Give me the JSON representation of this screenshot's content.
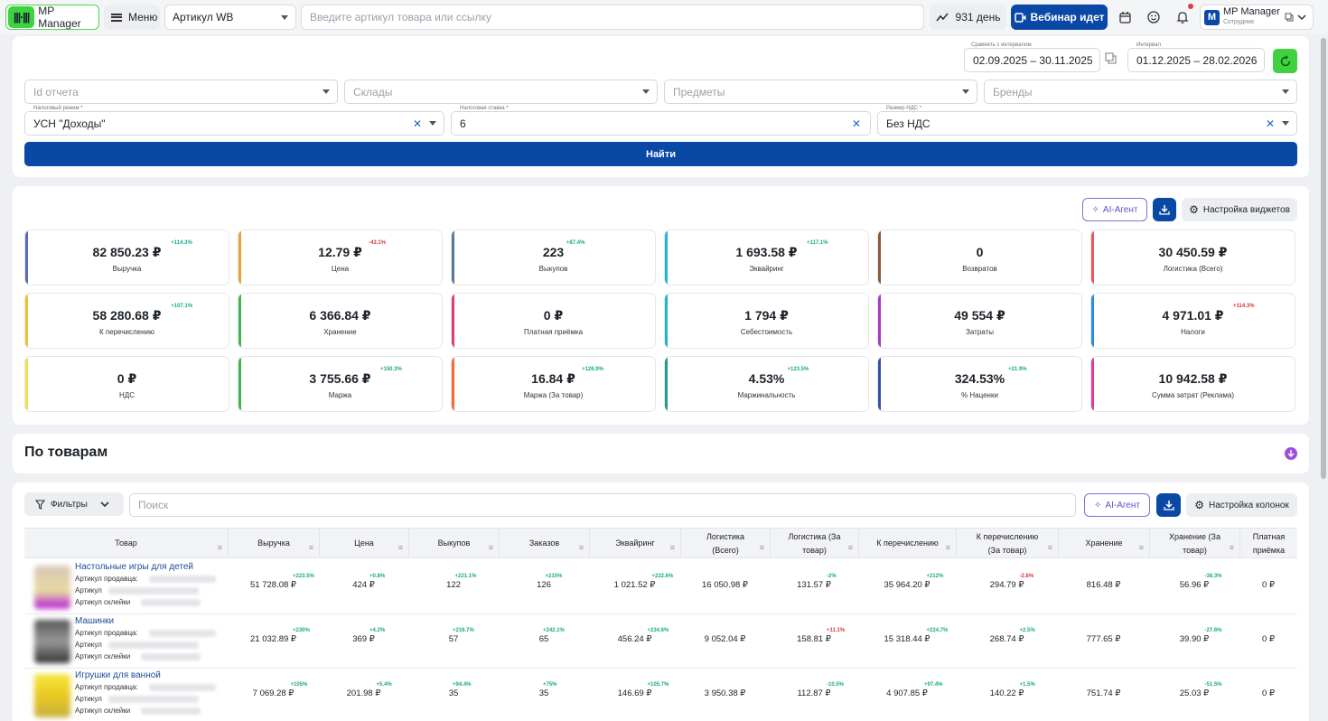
{
  "topbar": {
    "logo_mark": "|||·|||",
    "logo_text": "MP Manager",
    "menu_label": "Меню",
    "article_select": "Артикул WB",
    "search_placeholder": "Введите артикул товара или ссылку",
    "days_label": "931 день",
    "webinar_label": "Вебинар идет",
    "user_name": "MP Manager",
    "user_role": "Сотрудник",
    "user_initial": "M"
  },
  "filters": {
    "compare_label": "Сравнить с интервалом",
    "compare_value": "02.09.2025 – 30.11.2025",
    "interval_label": "Интервал",
    "interval_value": "01.12.2025 – 28.02.2026",
    "report_id_placeholder": "Id отчета",
    "warehouses_placeholder": "Склады",
    "subjects_placeholder": "Предметы",
    "brands_placeholder": "Бренды",
    "tax_regime_label": "Налоговый режим *",
    "tax_regime_value": "УСН \"Доходы\"",
    "tax_rate_label": "Налоговая ставка *",
    "tax_rate_value": "6",
    "vat_label": "Размер НДС *",
    "vat_value": "Без НДС",
    "find_button": "Найти"
  },
  "widgets": {
    "ai_agent": "AI-Агент",
    "settings": "Настройка виджетов",
    "kpis": [
      {
        "value": "82 850.23 ₽",
        "label": "Выручка",
        "delta": "+114.3%",
        "trend": "pos",
        "color": "#5b6ab5"
      },
      {
        "value": "12.79 ₽",
        "label": "Цена",
        "delta": "-43.1%",
        "trend": "neg",
        "color": "#f0a030"
      },
      {
        "value": "223",
        "label": "Выкупов",
        "delta": "+87.4%",
        "trend": "pos",
        "color": "#5b7896"
      },
      {
        "value": "1 693.58 ₽",
        "label": "Эквайринг",
        "delta": "+117.1%",
        "trend": "pos",
        "color": "#1eb6d6"
      },
      {
        "value": "0",
        "label": "Возвратов",
        "delta": "",
        "trend": "",
        "color": "#8a5a40"
      },
      {
        "value": "30 450.59 ₽",
        "label": "Логистика (Всего)",
        "delta": "",
        "trend": "",
        "color": "#e85a5a"
      },
      {
        "value": "58 280.68 ₽",
        "label": "К перечислению",
        "delta": "+107.1%",
        "trend": "pos",
        "color": "#f2c230"
      },
      {
        "value": "6 366.84 ₽",
        "label": "Хранение",
        "delta": "",
        "trend": "",
        "color": "#42b556"
      },
      {
        "value": "0 ₽",
        "label": "Платная приёмка",
        "delta": "",
        "trend": "",
        "color": "#e03a7a"
      },
      {
        "value": "1 794 ₽",
        "label": "Себестоимость",
        "delta": "",
        "trend": "",
        "color": "#1eb6c6"
      },
      {
        "value": "49 554 ₽",
        "label": "Затраты",
        "delta": "",
        "trend": "",
        "color": "#a63ac6"
      },
      {
        "value": "4 971.01 ₽",
        "label": "Налоги",
        "delta": "+114.3%",
        "trend": "neg",
        "color": "#2a8ee0"
      },
      {
        "value": "0 ₽",
        "label": "НДС",
        "delta": "",
        "trend": "",
        "color": "#f2e050"
      },
      {
        "value": "3 755.66 ₽",
        "label": "Маржа",
        "delta": "+150.3%",
        "trend": "pos",
        "color": "#42b556"
      },
      {
        "value": "16.84 ₽",
        "label": "Маржа (За товар)",
        "delta": "+126.9%",
        "trend": "pos",
        "color": "#f06a3a"
      },
      {
        "value": "4.53%",
        "label": "Маржинальность",
        "delta": "+123.5%",
        "trend": "pos",
        "color": "#1e9e8e"
      },
      {
        "value": "324.53%",
        "label": "% Наценки",
        "delta": "+21.9%",
        "trend": "pos",
        "color": "#3a4ea6"
      },
      {
        "value": "10 942.58 ₽",
        "label": "Сумма затрат (Реклама)",
        "delta": "",
        "trend": "",
        "color": "#e03a9a"
      }
    ]
  },
  "products_section": {
    "title": "По товарам"
  },
  "table": {
    "filters_label": "Фильтры",
    "search_placeholder": "Поиск",
    "ai_agent": "AI-Агент",
    "columns_settings": "Настройка колонок",
    "columns": [
      "Товар",
      "Выручка",
      "Цена",
      "Выкупов",
      "Заказов",
      "Эквайринг",
      "Логистика (Всего)",
      "Логистика (За товар)",
      "К перечислению",
      "К перечислению (За товар)",
      "Хранение",
      "Хранение (За товар)",
      "Платная приёмка"
    ],
    "meta_labels": [
      "Артикул продавца:",
      "Артикул",
      "Артикул склейки"
    ],
    "rows": [
      {
        "name": "Настольные игры для детей",
        "cells": [
          "51 728.08 ₽",
          "424 ₽",
          "122",
          "126",
          "1 021.52 ₽",
          "16 050.98 ₽",
          "131.57 ₽",
          "35 964.20 ₽",
          "294.79 ₽",
          "816.48 ₽",
          "56.96 ₽",
          "0 ₽"
        ],
        "deltas": [
          "+223.5%",
          "+0.8%",
          "+221.1%",
          "+215%",
          "+222.6%",
          "",
          "-2%",
          "+212%",
          "-2.8%",
          "",
          "-38.3%",
          ""
        ],
        "trends": [
          "pos",
          "pos",
          "pos",
          "pos",
          "pos",
          "",
          "pos",
          "pos",
          "neg",
          "",
          "pos",
          ""
        ]
      },
      {
        "name": "Машинки",
        "cells": [
          "21 032.89 ₽",
          "369 ₽",
          "57",
          "65",
          "456.24 ₽",
          "9 052.04 ₽",
          "158.81 ₽",
          "15 318.44 ₽",
          "268.74 ₽",
          "777.65 ₽",
          "39.90 ₽",
          "0 ₽"
        ],
        "deltas": [
          "+230%",
          "+4.2%",
          "+216.7%",
          "+242.1%",
          "+234.6%",
          "",
          "+11.1%",
          "+224.7%",
          "+2.5%",
          "",
          "-27.6%",
          ""
        ],
        "trends": [
          "pos",
          "pos",
          "pos",
          "pos",
          "pos",
          "",
          "neg",
          "pos",
          "pos",
          "",
          "pos",
          ""
        ]
      },
      {
        "name": "Игрушки для ванной",
        "cells": [
          "7 069.28 ₽",
          "201.98 ₽",
          "35",
          "35",
          "146.69 ₽",
          "3 950.38 ₽",
          "112.87 ₽",
          "4 907.85 ₽",
          "140.22 ₽",
          "751.74 ₽",
          "25.03 ₽",
          "0 ₽"
        ],
        "deltas": [
          "+105%",
          "+5.4%",
          "+94.4%",
          "+75%",
          "+105.7%",
          "",
          "-10.5%",
          "+97.4%",
          "+1.5%",
          "",
          "-51.5%",
          ""
        ],
        "trends": [
          "pos",
          "pos",
          "pos",
          "pos",
          "pos",
          "",
          "pos",
          "pos",
          "pos",
          "",
          "pos",
          ""
        ]
      }
    ]
  }
}
